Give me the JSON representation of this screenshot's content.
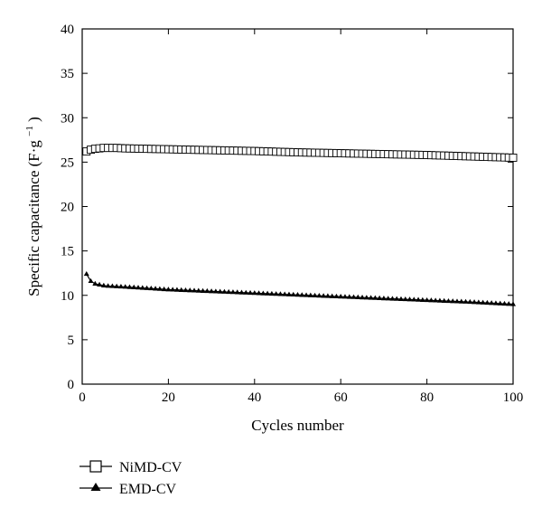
{
  "chart_data": {
    "type": "line",
    "xlabel": "Cycles number",
    "ylabel": "Specific capacitance (F·g",
    "ylabel_sup": "−1",
    "ylabel_close": ")",
    "xlim": [
      0,
      100
    ],
    "ylim": [
      0,
      40
    ],
    "xticks": [
      0,
      20,
      40,
      60,
      80,
      100
    ],
    "yticks": [
      0,
      5,
      10,
      15,
      20,
      25,
      30,
      35,
      40
    ],
    "grid": false,
    "legend_position": "bottom-left",
    "series": [
      {
        "name": "NiMD-CV",
        "marker": "open-square",
        "x": [
          1,
          2,
          3,
          4,
          5,
          6,
          8,
          10,
          15,
          20,
          30,
          40,
          50,
          60,
          70,
          80,
          90,
          100
        ],
        "values": [
          26.2,
          26.4,
          26.5,
          26.55,
          26.6,
          26.6,
          26.6,
          26.55,
          26.5,
          26.45,
          26.35,
          26.25,
          26.1,
          26.0,
          25.9,
          25.8,
          25.65,
          25.5
        ]
      },
      {
        "name": "EMD-CV",
        "marker": "filled-triangle",
        "x": [
          1,
          2,
          3,
          4,
          5,
          6,
          8,
          10,
          15,
          20,
          30,
          40,
          50,
          60,
          70,
          80,
          90,
          100
        ],
        "values": [
          12.4,
          11.6,
          11.3,
          11.2,
          11.1,
          11.05,
          11.0,
          10.95,
          10.8,
          10.65,
          10.45,
          10.25,
          10.05,
          9.85,
          9.65,
          9.45,
          9.25,
          9.0
        ]
      }
    ]
  }
}
